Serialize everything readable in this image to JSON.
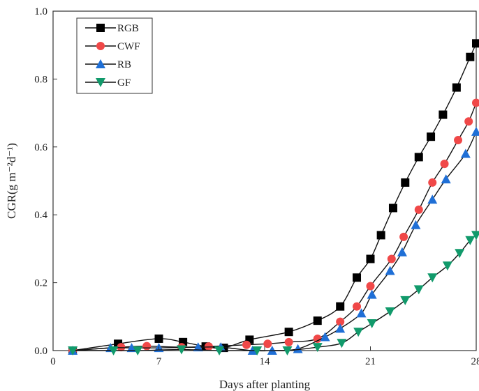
{
  "chart_data": {
    "type": "line",
    "xlabel": "Days after planting",
    "ylabel": "CGR(g m⁻²d⁻¹)",
    "xlim": [
      0,
      28
    ],
    "ylim": [
      0,
      1.0
    ],
    "xticks": [
      "0",
      "7",
      "14",
      "21",
      "28"
    ],
    "yticks": [
      "0.0",
      "0.2",
      "0.4",
      "0.6",
      "0.8",
      "1.0"
    ],
    "grid": false,
    "legend_position": "top-left",
    "series": [
      {
        "name": "RGB",
        "color": "#000000",
        "marker": "square",
        "points": [
          [
            1.3,
            0.0
          ],
          [
            4.3,
            0.02
          ],
          [
            7.0,
            0.035
          ],
          [
            8.6,
            0.025
          ],
          [
            10.1,
            0.012
          ],
          [
            11.3,
            0.008
          ],
          [
            13.0,
            0.032
          ],
          [
            15.6,
            0.055
          ],
          [
            17.5,
            0.088
          ],
          [
            19.0,
            0.13
          ],
          [
            20.1,
            0.215
          ],
          [
            21.0,
            0.27
          ],
          [
            21.7,
            0.34
          ],
          [
            22.5,
            0.42
          ],
          [
            23.3,
            0.495
          ],
          [
            24.2,
            0.57
          ],
          [
            25.0,
            0.63
          ],
          [
            25.8,
            0.695
          ],
          [
            26.7,
            0.775
          ],
          [
            27.6,
            0.865
          ],
          [
            28.0,
            0.905
          ]
        ]
      },
      {
        "name": "CWF",
        "color": "#f04848",
        "marker": "circle",
        "points": [
          [
            1.3,
            0.0
          ],
          [
            4.5,
            0.01
          ],
          [
            6.2,
            0.013
          ],
          [
            8.5,
            0.01
          ],
          [
            10.3,
            0.012
          ],
          [
            12.8,
            0.017
          ],
          [
            14.2,
            0.02
          ],
          [
            15.6,
            0.025
          ],
          [
            17.5,
            0.035
          ],
          [
            19.0,
            0.085
          ],
          [
            20.1,
            0.13
          ],
          [
            21.0,
            0.19
          ],
          [
            22.4,
            0.27
          ],
          [
            23.2,
            0.335
          ],
          [
            24.2,
            0.415
          ],
          [
            25.1,
            0.495
          ],
          [
            25.9,
            0.55
          ],
          [
            26.8,
            0.62
          ],
          [
            27.5,
            0.675
          ],
          [
            28.0,
            0.73
          ]
        ]
      },
      {
        "name": "RB",
        "color": "#1f6fd6",
        "marker": "triangle-up",
        "points": [
          [
            1.3,
            0.0
          ],
          [
            3.8,
            0.008
          ],
          [
            5.2,
            0.008
          ],
          [
            7.0,
            0.008
          ],
          [
            9.6,
            0.01
          ],
          [
            11.1,
            0.01
          ],
          [
            13.2,
            0.0
          ],
          [
            14.5,
            0.0
          ],
          [
            16.2,
            0.005
          ],
          [
            18.0,
            0.04
          ],
          [
            19.0,
            0.065
          ],
          [
            20.4,
            0.11
          ],
          [
            21.1,
            0.165
          ],
          [
            22.3,
            0.235
          ],
          [
            23.1,
            0.29
          ],
          [
            24.0,
            0.37
          ],
          [
            25.1,
            0.445
          ],
          [
            26.0,
            0.505
          ],
          [
            27.3,
            0.58
          ],
          [
            28.0,
            0.645
          ]
        ]
      },
      {
        "name": "GF",
        "color": "#119a6b",
        "marker": "triangle-down",
        "points": [
          [
            1.3,
            0.0
          ],
          [
            4.0,
            0.0
          ],
          [
            5.6,
            0.0
          ],
          [
            8.5,
            0.003
          ],
          [
            11.0,
            0.0
          ],
          [
            13.5,
            0.0
          ],
          [
            15.5,
            0.0
          ],
          [
            17.5,
            0.01
          ],
          [
            19.1,
            0.022
          ],
          [
            20.2,
            0.055
          ],
          [
            21.1,
            0.08
          ],
          [
            22.3,
            0.115
          ],
          [
            23.3,
            0.148
          ],
          [
            24.2,
            0.18
          ],
          [
            25.1,
            0.215
          ],
          [
            26.1,
            0.25
          ],
          [
            26.9,
            0.287
          ],
          [
            27.6,
            0.325
          ],
          [
            28.0,
            0.34
          ]
        ]
      }
    ]
  }
}
